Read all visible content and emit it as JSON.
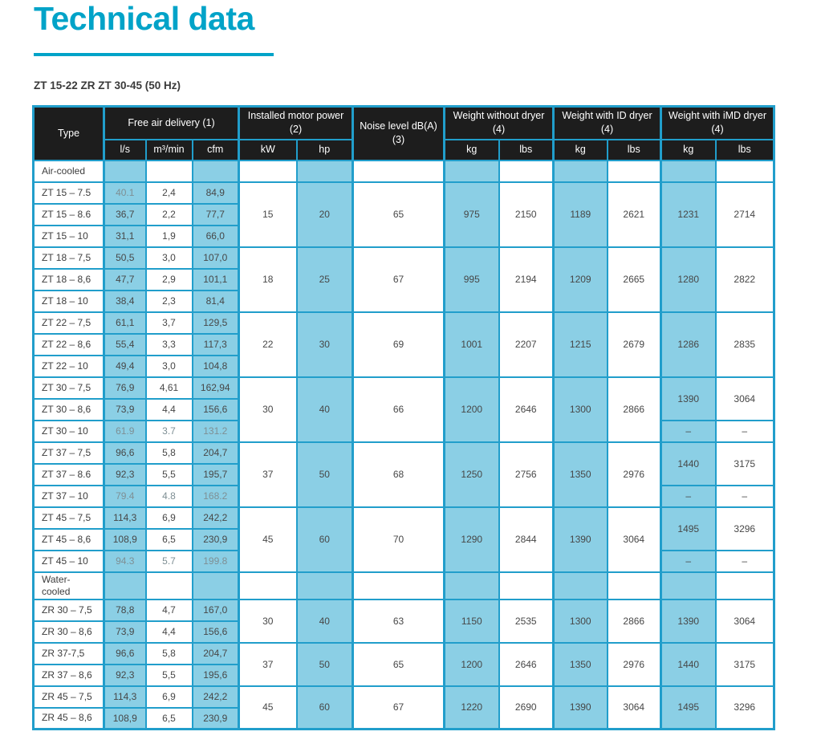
{
  "page": {
    "title": "Technical data",
    "subtitle": "ZT 15-22 ZR ZT 30-45 (50 Hz)"
  },
  "colors": {
    "accent": "#00a3c8",
    "header_bg": "#1d1d1d",
    "grid": "#219ecb",
    "cell_blue": "#8bcfe5",
    "text": "#474747",
    "muted_text": "#7e8f94"
  },
  "table": {
    "head_rows": [
      {
        "cells": [
          {
            "t": "Type",
            "rs": 2
          },
          {
            "t": "Free air delivery (1)",
            "cs": 3
          },
          {
            "t": "Installed motor power (2)",
            "cs": 2
          },
          {
            "t": "Noise level dB(A) (3)",
            "rs": 2
          },
          {
            "t": "Weight without dryer (4)",
            "cs": 2
          },
          {
            "t": "Weight with ID dryer (4)",
            "cs": 2
          },
          {
            "t": "Weight with iMD dryer (4)",
            "cs": 2
          }
        ]
      },
      {
        "cells": [
          {
            "t": "l/s"
          },
          {
            "t": "m³/min"
          },
          {
            "t": "cfm"
          },
          {
            "t": "kW"
          },
          {
            "t": "hp"
          },
          {
            "t": "kg"
          },
          {
            "t": "lbs"
          },
          {
            "t": "kg"
          },
          {
            "t": "lbs"
          },
          {
            "t": "kg"
          },
          {
            "t": "lbs"
          }
        ]
      }
    ],
    "body_rows": [
      {
        "section": 1,
        "cells": [
          {
            "t": "Air-cooled"
          },
          {},
          {},
          {},
          {},
          {},
          {},
          {},
          {},
          {},
          {},
          {},
          {}
        ]
      },
      {
        "cells": [
          {
            "t": "ZT 15 – 7.5"
          },
          {
            "t": "40.1",
            "m": 1
          },
          {
            "t": "2,4"
          },
          {
            "t": "84,9"
          },
          {
            "t": "15",
            "rs": 3
          },
          {
            "t": "20",
            "rs": 3
          },
          {
            "t": "65",
            "rs": 3
          },
          {
            "t": "975",
            "rs": 3
          },
          {
            "t": "2150",
            "rs": 3
          },
          {
            "t": "1189",
            "rs": 3
          },
          {
            "t": "2621",
            "rs": 3
          },
          {
            "t": "1231",
            "rs": 3
          },
          {
            "t": "2714",
            "rs": 3
          }
        ]
      },
      {
        "cells": [
          {
            "t": "ZT 15 – 8.6"
          },
          {
            "t": "36,7"
          },
          {
            "t": "2,2"
          },
          {
            "t": "77,7"
          }
        ]
      },
      {
        "cells": [
          {
            "t": "ZT 15 – 10"
          },
          {
            "t": "31,1"
          },
          {
            "t": "1,9"
          },
          {
            "t": "66,0"
          }
        ]
      },
      {
        "cells": [
          {
            "t": "ZT 18 – 7,5"
          },
          {
            "t": "50,5"
          },
          {
            "t": "3,0"
          },
          {
            "t": "107,0"
          },
          {
            "t": "18",
            "rs": 3
          },
          {
            "t": "25",
            "rs": 3
          },
          {
            "t": "67",
            "rs": 3
          },
          {
            "t": "995",
            "rs": 3
          },
          {
            "t": "2194",
            "rs": 3
          },
          {
            "t": "1209",
            "rs": 3
          },
          {
            "t": "2665",
            "rs": 3
          },
          {
            "t": "1280",
            "rs": 3
          },
          {
            "t": "2822",
            "rs": 3
          }
        ]
      },
      {
        "cells": [
          {
            "t": "ZT 18 – 8,6"
          },
          {
            "t": "47,7"
          },
          {
            "t": "2,9"
          },
          {
            "t": "101,1"
          }
        ]
      },
      {
        "cells": [
          {
            "t": "ZT 18 – 10"
          },
          {
            "t": "38,4"
          },
          {
            "t": "2,3"
          },
          {
            "t": "81,4"
          }
        ]
      },
      {
        "cells": [
          {
            "t": "ZT 22 – 7,5"
          },
          {
            "t": "61,1"
          },
          {
            "t": "3,7"
          },
          {
            "t": "129,5"
          },
          {
            "t": "22",
            "rs": 3
          },
          {
            "t": "30",
            "rs": 3
          },
          {
            "t": "69",
            "rs": 3
          },
          {
            "t": "1001",
            "rs": 3
          },
          {
            "t": "2207",
            "rs": 3
          },
          {
            "t": "1215",
            "rs": 3
          },
          {
            "t": "2679",
            "rs": 3
          },
          {
            "t": "1286",
            "rs": 3
          },
          {
            "t": "2835",
            "rs": 3
          }
        ]
      },
      {
        "cells": [
          {
            "t": "ZT 22 – 8,6"
          },
          {
            "t": "55,4"
          },
          {
            "t": "3,3"
          },
          {
            "t": "117,3"
          }
        ]
      },
      {
        "cells": [
          {
            "t": "ZT 22 – 10"
          },
          {
            "t": "49,4"
          },
          {
            "t": "3,0"
          },
          {
            "t": "104,8"
          }
        ]
      },
      {
        "cells": [
          {
            "t": "ZT 30 – 7,5"
          },
          {
            "t": "76,9"
          },
          {
            "t": "4,61"
          },
          {
            "t": "162,94"
          },
          {
            "t": "30",
            "rs": 3
          },
          {
            "t": "40",
            "rs": 3
          },
          {
            "t": "66",
            "rs": 3
          },
          {
            "t": "1200",
            "rs": 3
          },
          {
            "t": "2646",
            "rs": 3
          },
          {
            "t": "1300",
            "rs": 3
          },
          {
            "t": "2866",
            "rs": 3
          },
          {
            "t": "1390",
            "rs": 2
          },
          {
            "t": "3064",
            "rs": 2
          }
        ]
      },
      {
        "cells": [
          {
            "t": "ZT 30 – 8,6"
          },
          {
            "t": "73,9"
          },
          {
            "t": "4,4"
          },
          {
            "t": "156,6"
          }
        ]
      },
      {
        "cells": [
          {
            "t": "ZT 30 – 10"
          },
          {
            "t": "61.9",
            "m": 1
          },
          {
            "t": "3.7",
            "m": 1
          },
          {
            "t": "131.2",
            "m": 1
          },
          {
            "t": "–"
          },
          {
            "t": "–"
          }
        ]
      },
      {
        "cells": [
          {
            "t": "ZT 37 – 7,5"
          },
          {
            "t": "96,6"
          },
          {
            "t": "5,8"
          },
          {
            "t": "204,7"
          },
          {
            "t": "37",
            "rs": 3
          },
          {
            "t": "50",
            "rs": 3
          },
          {
            "t": "68",
            "rs": 3
          },
          {
            "t": "1250",
            "rs": 3
          },
          {
            "t": "2756",
            "rs": 3
          },
          {
            "t": "1350",
            "rs": 3
          },
          {
            "t": "2976",
            "rs": 3
          },
          {
            "t": "1440",
            "rs": 2
          },
          {
            "t": "3175",
            "rs": 2
          }
        ]
      },
      {
        "cells": [
          {
            "t": "ZT 37 – 8.6"
          },
          {
            "t": "92,3"
          },
          {
            "t": "5,5"
          },
          {
            "t": "195,7"
          }
        ]
      },
      {
        "cells": [
          {
            "t": "ZT 37 – 10"
          },
          {
            "t": "79.4",
            "m": 1
          },
          {
            "t": "4.8",
            "m": 1
          },
          {
            "t": "168.2",
            "m": 1
          },
          {
            "t": "–"
          },
          {
            "t": "–"
          }
        ]
      },
      {
        "cells": [
          {
            "t": "ZT 45 – 7,5"
          },
          {
            "t": "114,3"
          },
          {
            "t": "6,9"
          },
          {
            "t": "242,2"
          },
          {
            "t": "45",
            "rs": 3
          },
          {
            "t": "60",
            "rs": 3
          },
          {
            "t": "70",
            "rs": 3
          },
          {
            "t": "1290",
            "rs": 3
          },
          {
            "t": "2844",
            "rs": 3
          },
          {
            "t": "1390",
            "rs": 3
          },
          {
            "t": "3064",
            "rs": 3
          },
          {
            "t": "1495",
            "rs": 2
          },
          {
            "t": "3296",
            "rs": 2
          }
        ]
      },
      {
        "cells": [
          {
            "t": "ZT 45 – 8,6"
          },
          {
            "t": "108,9"
          },
          {
            "t": "6,5"
          },
          {
            "t": "230,9"
          }
        ]
      },
      {
        "cells": [
          {
            "t": "ZT 45 – 10"
          },
          {
            "t": "94.3",
            "m": 1
          },
          {
            "t": "5.7",
            "m": 1
          },
          {
            "t": "199.8",
            "m": 1
          },
          {
            "t": "–"
          },
          {
            "t": "–"
          }
        ]
      },
      {
        "section": 1,
        "cells": [
          {
            "t": "Water-\ncooled"
          },
          {},
          {},
          {},
          {},
          {},
          {},
          {},
          {},
          {},
          {},
          {},
          {}
        ]
      },
      {
        "cells": [
          {
            "t": "ZR 30 – 7,5"
          },
          {
            "t": "78,8"
          },
          {
            "t": "4,7"
          },
          {
            "t": "167,0"
          },
          {
            "t": "30",
            "rs": 2
          },
          {
            "t": "40",
            "rs": 2
          },
          {
            "t": "63",
            "rs": 2
          },
          {
            "t": "1150",
            "rs": 2
          },
          {
            "t": "2535",
            "rs": 2
          },
          {
            "t": "1300",
            "rs": 2
          },
          {
            "t": "2866",
            "rs": 2
          },
          {
            "t": "1390",
            "rs": 2
          },
          {
            "t": "3064",
            "rs": 2
          }
        ]
      },
      {
        "cells": [
          {
            "t": "ZR 30 – 8,6"
          },
          {
            "t": "73,9"
          },
          {
            "t": "4,4"
          },
          {
            "t": "156,6"
          }
        ]
      },
      {
        "cells": [
          {
            "t": "ZR 37-7,5"
          },
          {
            "t": "96,6"
          },
          {
            "t": "5,8"
          },
          {
            "t": "204,7"
          },
          {
            "t": "37",
            "rs": 2
          },
          {
            "t": "50",
            "rs": 2
          },
          {
            "t": "65",
            "rs": 2
          },
          {
            "t": "1200",
            "rs": 2
          },
          {
            "t": "2646",
            "rs": 2
          },
          {
            "t": "1350",
            "rs": 2
          },
          {
            "t": "2976",
            "rs": 2
          },
          {
            "t": "1440",
            "rs": 2
          },
          {
            "t": "3175",
            "rs": 2
          }
        ]
      },
      {
        "cells": [
          {
            "t": "ZR 37 – 8,6"
          },
          {
            "t": "92,3"
          },
          {
            "t": "5,5"
          },
          {
            "t": "195,6"
          }
        ]
      },
      {
        "cells": [
          {
            "t": "ZR 45 – 7,5"
          },
          {
            "t": "114,3"
          },
          {
            "t": "6,9"
          },
          {
            "t": "242,2"
          },
          {
            "t": "45",
            "rs": 2
          },
          {
            "t": "60",
            "rs": 2
          },
          {
            "t": "67",
            "rs": 2
          },
          {
            "t": "1220",
            "rs": 2
          },
          {
            "t": "2690",
            "rs": 2
          },
          {
            "t": "1390",
            "rs": 2
          },
          {
            "t": "3064",
            "rs": 2
          },
          {
            "t": "1495",
            "rs": 2
          },
          {
            "t": "3296",
            "rs": 2
          }
        ]
      },
      {
        "cells": [
          {
            "t": "ZR 45 – 8,6"
          },
          {
            "t": "108,9"
          },
          {
            "t": "6,5"
          },
          {
            "t": "230,9"
          }
        ]
      }
    ]
  }
}
